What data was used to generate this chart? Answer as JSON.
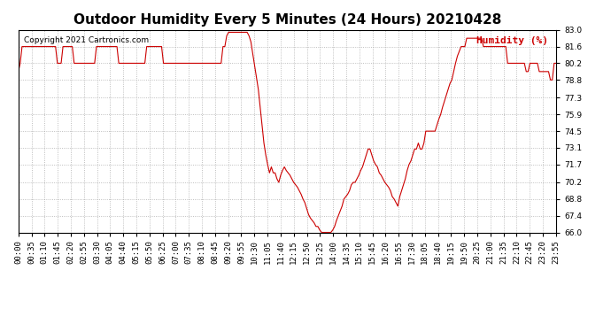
{
  "title": "Outdoor Humidity Every 5 Minutes (24 Hours) 20210428",
  "copyright_text": "Copyright 2021 Cartronics.com",
  "legend_label": "Humidity (%)",
  "line_color": "#cc0000",
  "legend_color": "#cc0000",
  "background_color": "#ffffff",
  "grid_color": "#999999",
  "title_fontsize": 11,
  "tick_fontsize": 6.5,
  "ylim": [
    66.0,
    83.0
  ],
  "yticks": [
    66.0,
    67.4,
    68.8,
    70.2,
    71.7,
    73.1,
    74.5,
    75.9,
    77.3,
    78.8,
    80.2,
    81.6,
    83.0
  ],
  "humidity_values": [
    79.5,
    80.2,
    81.6,
    81.6,
    81.6,
    81.6,
    81.6,
    81.6,
    81.6,
    81.6,
    81.6,
    81.6,
    81.6,
    81.6,
    81.6,
    81.6,
    81.6,
    81.6,
    81.6,
    81.6,
    81.6,
    80.2,
    80.2,
    80.2,
    81.6,
    81.6,
    81.6,
    81.6,
    81.6,
    81.6,
    80.2,
    80.2,
    80.2,
    80.2,
    80.2,
    80.2,
    80.2,
    80.2,
    80.2,
    80.2,
    80.2,
    80.2,
    81.6,
    81.6,
    81.6,
    81.6,
    81.6,
    81.6,
    81.6,
    81.6,
    81.6,
    81.6,
    81.6,
    81.6,
    80.2,
    80.2,
    80.2,
    80.2,
    80.2,
    80.2,
    80.2,
    80.2,
    80.2,
    80.2,
    80.2,
    80.2,
    80.2,
    80.2,
    80.2,
    81.6,
    81.6,
    81.6,
    81.6,
    81.6,
    81.6,
    81.6,
    81.6,
    81.6,
    80.2,
    80.2,
    80.2,
    80.2,
    80.2,
    80.2,
    80.2,
    80.2,
    80.2,
    80.2,
    80.2,
    80.2,
    80.2,
    80.2,
    80.2,
    80.2,
    80.2,
    80.2,
    80.2,
    80.2,
    80.2,
    80.2,
    80.2,
    80.2,
    80.2,
    80.2,
    80.2,
    80.2,
    80.2,
    80.2,
    80.2,
    80.2,
    81.6,
    81.6,
    82.5,
    82.8,
    82.8,
    82.8,
    82.8,
    82.8,
    82.8,
    82.8,
    82.8,
    82.8,
    82.8,
    82.8,
    82.5,
    82.0,
    81.0,
    80.0,
    79.0,
    78.0,
    76.5,
    75.0,
    73.5,
    72.5,
    71.7,
    71.0,
    71.5,
    71.0,
    71.0,
    70.5,
    70.2,
    70.8,
    71.2,
    71.5,
    71.2,
    71.0,
    70.8,
    70.5,
    70.2,
    70.0,
    69.8,
    69.5,
    69.2,
    68.8,
    68.5,
    68.0,
    67.5,
    67.2,
    67.0,
    66.8,
    66.5,
    66.5,
    66.2,
    66.0,
    66.0,
    66.0,
    66.0,
    66.0,
    66.0,
    66.2,
    66.5,
    67.0,
    67.4,
    67.8,
    68.2,
    68.8,
    69.0,
    69.2,
    69.5,
    70.0,
    70.2,
    70.2,
    70.5,
    70.8,
    71.2,
    71.5,
    72.0,
    72.5,
    73.0,
    73.0,
    72.5,
    72.0,
    71.7,
    71.5,
    71.0,
    70.8,
    70.5,
    70.2,
    70.0,
    69.8,
    69.5,
    69.0,
    68.8,
    68.5,
    68.2,
    69.0,
    69.5,
    70.0,
    70.5,
    71.2,
    71.7,
    72.0,
    72.5,
    73.0,
    73.0,
    73.5,
    73.0,
    73.0,
    73.5,
    74.5,
    74.5,
    74.5,
    74.5,
    74.5,
    74.5,
    75.0,
    75.5,
    75.9,
    76.5,
    77.0,
    77.5,
    78.0,
    78.5,
    78.8,
    79.5,
    80.2,
    80.8,
    81.2,
    81.6,
    81.6,
    81.6,
    82.3,
    82.3,
    82.3,
    82.3,
    82.3,
    82.3,
    82.3,
    82.3,
    82.3,
    81.6,
    81.6,
    81.6,
    81.6,
    81.6,
    81.6,
    81.6,
    81.6,
    81.6,
    81.6,
    81.6,
    81.6,
    81.6,
    80.2,
    80.2,
    80.2,
    80.2,
    80.2,
    80.2,
    80.2,
    80.2,
    80.2,
    80.2,
    79.5,
    79.5,
    80.2,
    80.2,
    80.2,
    80.2,
    80.2,
    79.5,
    79.5,
    79.5,
    79.5,
    79.5,
    79.5,
    78.8,
    78.8,
    80.2,
    80.2
  ],
  "xtick_labels": [
    "00:00",
    "00:35",
    "01:10",
    "01:45",
    "02:20",
    "02:55",
    "03:30",
    "04:05",
    "04:40",
    "05:15",
    "05:50",
    "06:25",
    "07:00",
    "07:35",
    "08:10",
    "08:45",
    "09:20",
    "09:55",
    "10:30",
    "11:05",
    "11:40",
    "12:15",
    "12:50",
    "13:25",
    "14:00",
    "14:35",
    "15:10",
    "15:45",
    "16:20",
    "16:55",
    "17:30",
    "18:05",
    "18:40",
    "19:15",
    "19:50",
    "20:25",
    "21:00",
    "21:35",
    "22:10",
    "22:45",
    "23:20",
    "23:55"
  ]
}
